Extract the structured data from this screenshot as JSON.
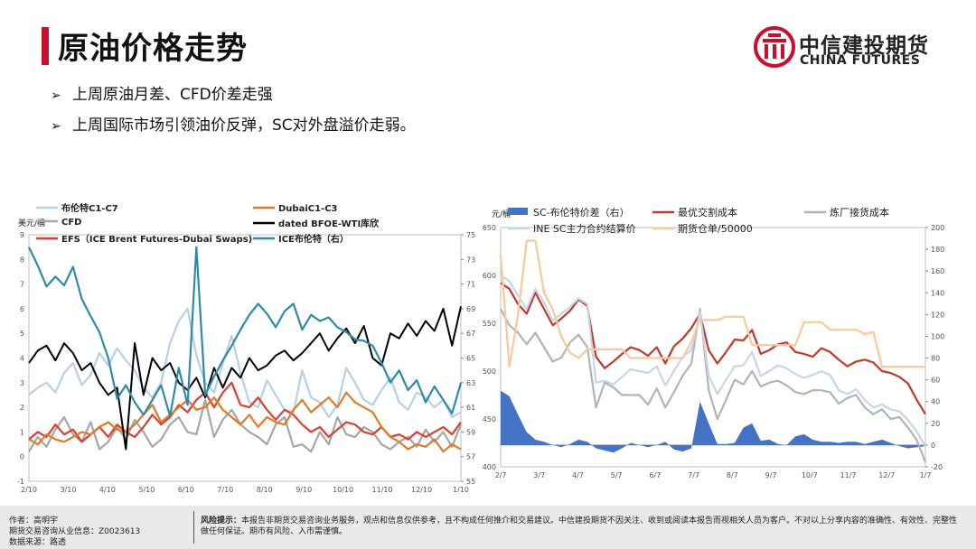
{
  "page_title": "原油价格走势",
  "logo": {
    "cn": "中信建投期货",
    "en": "CHINA FUTURES"
  },
  "bullets": [
    "上周原油月差、CFD价差走强",
    "上周国际市场引领油价反弹，SC对外盘溢价走弱。"
  ],
  "footer": {
    "author": "作者：高明宇",
    "license": "期货交易咨询从业信息：Z0023613",
    "source": "数据来源：路透",
    "risk_label": "风险提示：",
    "risk_text": "本报告非期货交易咨询业务服务，观点和信息仅供参考，且不构成任何推介和交易建议。中信建投期货不因关注、收到或阅读本报告而视相关人员为客户。不对以上分享内容的准确性、有效性、完整性做任何保证。期市有风险、入市需谨慎。"
  },
  "colors": {
    "accent": "#c8102e",
    "blue_light": "#b8cfe8",
    "gray": "#a6a6a6",
    "red": "#d94030",
    "orange": "#e07a2a",
    "black": "#000000",
    "teal": "#2e8ba8",
    "sc_bar": "#4472c4",
    "cost_red": "#c0392b",
    "cost_gray": "#b3b3b3",
    "ine_light": "#c6d6ea",
    "warehouse": "#f7c99b"
  },
  "chart_data": [
    {
      "type": "line",
      "ylabel_left": "美元/桶",
      "x_ticks": [
        "2/10",
        "3/10",
        "4/10",
        "5/10",
        "6/10",
        "7/10",
        "8/10",
        "9/10",
        "10/10",
        "11/10",
        "12/10",
        "1/10"
      ],
      "ylim_left": [
        -1,
        9
      ],
      "yticks_left": [
        -1,
        0,
        1,
        2,
        3,
        4,
        5,
        6,
        7,
        8,
        9
      ],
      "ylim_right": [
        55,
        75
      ],
      "yticks_right": [
        55,
        57,
        59,
        61,
        63,
        65,
        67,
        69,
        71,
        73,
        75
      ],
      "legend_position": "top",
      "series": [
        {
          "name": "布伦特C1-C7",
          "axis": "left",
          "color": "#b8cfe8",
          "values": [
            2.5,
            2.8,
            3.0,
            2.6,
            3.4,
            3.8,
            2.9,
            3.3,
            4.2,
            3.7,
            4.4,
            3.9,
            3.5,
            2.8,
            2.4,
            3.0,
            4.6,
            5.5,
            6.0,
            4.1,
            3.0,
            2.6,
            3.8,
            4.9,
            3.4,
            2.2,
            2.0,
            3.1,
            2.5,
            1.9,
            1.8,
            3.5,
            2.4,
            2.2,
            1.6,
            2.1,
            3.6,
            3.0,
            2.3,
            2.1,
            2.7,
            3.2,
            2.2,
            1.9,
            2.6,
            2.4,
            2.0,
            2.3,
            1.6,
            1.8
          ]
        },
        {
          "name": "CFD",
          "axis": "left",
          "color": "#a6a6a6",
          "values": [
            0.2,
            0.8,
            0.4,
            1.1,
            1.6,
            0.9,
            0.6,
            1.4,
            0.3,
            0.6,
            1.2,
            0.7,
            1.5,
            1.0,
            0.4,
            0.7,
            1.3,
            1.6,
            1.0,
            0.9,
            2.3,
            0.8,
            1.5,
            1.9,
            1.3,
            1.0,
            0.8,
            0.5,
            1.3,
            1.6,
            0.4,
            0.5,
            0.2,
            1.0,
            0.5,
            1.6,
            0.9,
            0.8,
            1.2,
            1.0,
            0.5,
            0.3,
            0.6,
            0.8,
            0.4,
            1.1,
            0.6,
            1.0,
            0.4,
            1.3
          ]
        },
        {
          "name": "EFS（ICE Brent Futures-Dubai Swaps)",
          "axis": "left",
          "color": "#d94030",
          "values": [
            0.7,
            1.0,
            0.8,
            1.3,
            0.9,
            1.1,
            0.6,
            0.9,
            1.2,
            0.8,
            1.3,
            1.0,
            0.8,
            1.2,
            1.7,
            1.3,
            1.6,
            2.1,
            1.8,
            2.3,
            2.6,
            2.0,
            2.6,
            3.0,
            2.1,
            2.0,
            2.4,
            1.9,
            1.5,
            1.9,
            1.7,
            1.3,
            1.0,
            1.2,
            0.8,
            1.1,
            1.4,
            1.3,
            1.0,
            0.9,
            1.2,
            0.8,
            0.9,
            0.7,
            1.0,
            0.8,
            1.0,
            1.2,
            0.9,
            1.4
          ]
        },
        {
          "name": "DubaiC1-C3",
          "axis": "left",
          "color": "#e07a2a",
          "values": [
            0.7,
            0.5,
            0.9,
            0.7,
            0.6,
            0.8,
            1.0,
            0.9,
            1.2,
            1.4,
            1.1,
            1.0,
            1.3,
            1.7,
            2.1,
            1.4,
            1.7,
            2.0,
            2.3,
            1.9,
            2.0,
            2.4,
            1.9,
            1.6,
            1.3,
            1.7,
            1.2,
            1.6,
            1.4,
            1.3,
            1.9,
            2.3,
            1.8,
            2.1,
            2.4,
            2.0,
            2.6,
            2.2,
            2.0,
            1.8,
            1.2,
            0.8,
            0.6,
            0.3,
            0.5,
            0.4,
            0.7,
            0.2,
            0.5,
            0.3
          ]
        },
        {
          "name": "dated BFOE-WTI库欣",
          "axis": "left",
          "color": "#000000",
          "values": [
            3.8,
            4.3,
            4.5,
            3.9,
            4.6,
            4.2,
            3.5,
            3.8,
            3.0,
            2.5,
            2.8,
            0.3,
            4.6,
            2.5,
            4.0,
            3.5,
            3.8,
            3.0,
            2.7,
            3.2,
            2.4,
            3.6,
            2.8,
            3.6,
            3.2,
            4.0,
            3.5,
            3.7,
            4.1,
            4.3,
            3.9,
            4.2,
            4.6,
            5.0,
            4.3,
            4.8,
            5.2,
            4.6,
            5.3,
            4.0,
            3.7,
            5.0,
            4.8,
            5.4,
            4.9,
            5.5,
            5.1,
            6.0,
            4.5,
            6.1
          ]
        },
        {
          "name": "ICE布伦特（右）",
          "axis": "right",
          "color": "#2e8ba8",
          "values": [
            74.0,
            72.5,
            70.8,
            71.6,
            70.9,
            72.4,
            69.8,
            68.4,
            67.1,
            65.0,
            61.7,
            62.8,
            61.4,
            60.4,
            61.6,
            62.8,
            60.3,
            64.2,
            61.2,
            74.0,
            62.0,
            63.5,
            64.8,
            66.0,
            67.3,
            68.5,
            69.4,
            68.6,
            67.5,
            68.8,
            69.4,
            67.3,
            68.5,
            68.0,
            68.3,
            67.5,
            67.1,
            66.5,
            66.4,
            66.0,
            64.6,
            63.0,
            64.0,
            62.4,
            63.2,
            61.4,
            62.7,
            61.6,
            60.5,
            63.0
          ]
        }
      ]
    },
    {
      "type": "line",
      "ylabel_left": "元/桶",
      "x_ticks": [
        "2/7",
        "3/7",
        "4/7",
        "5/7",
        "6/7",
        "7/7",
        "8/7",
        "9/7",
        "10/7",
        "11/7",
        "12/7",
        "1/7"
      ],
      "ylim_left": [
        400,
        650
      ],
      "yticks_left": [
        400,
        450,
        500,
        550,
        600,
        650
      ],
      "ylim_right": [
        -20,
        200
      ],
      "yticks_right": [
        -20,
        0,
        20,
        40,
        60,
        80,
        100,
        120,
        140,
        160,
        180,
        200
      ],
      "legend_position": "top",
      "series": [
        {
          "name": "SC-布伦特价差（右）",
          "axis": "right",
          "kind": "area",
          "color": "#4472c4",
          "values": [
            50,
            45,
            28,
            12,
            5,
            3,
            0,
            -2,
            1,
            5,
            3,
            -3,
            -5,
            -7,
            -3,
            2,
            0,
            -2,
            0,
            3,
            -4,
            -6,
            -3,
            40,
            20,
            1,
            1,
            2,
            16,
            20,
            4,
            5,
            1,
            0,
            8,
            10,
            5,
            3,
            3,
            2,
            3,
            3,
            1,
            3,
            5,
            2,
            -1,
            -3,
            -2,
            -1
          ]
        },
        {
          "name": "最优交割成本",
          "axis": "left",
          "color": "#c0392b",
          "values": [
            592,
            586,
            570,
            560,
            582,
            565,
            548,
            555,
            563,
            575,
            568,
            515,
            503,
            510,
            518,
            525,
            522,
            516,
            525,
            508,
            526,
            534,
            545,
            560,
            522,
            508,
            520,
            533,
            532,
            543,
            518,
            522,
            528,
            530,
            520,
            518,
            515,
            524,
            520,
            512,
            505,
            510,
            512,
            509,
            500,
            498,
            494,
            487,
            470,
            455
          ]
        },
        {
          "name": "炼厂接货成本",
          "axis": "left",
          "color": "#b3b3b3",
          "values": [
            565,
            548,
            540,
            528,
            540,
            525,
            510,
            514,
            530,
            538,
            525,
            462,
            488,
            483,
            475,
            475,
            475,
            465,
            482,
            462,
            478,
            495,
            508,
            565,
            480,
            450,
            470,
            491,
            486,
            500,
            484,
            488,
            490,
            485,
            478,
            476,
            480,
            480,
            478,
            466,
            472,
            475,
            462,
            455,
            460,
            450,
            452,
            441,
            428,
            405
          ]
        },
        {
          "name": "INE SC主力合约结算价",
          "axis": "left",
          "color": "#c6d6ea",
          "values": [
            600,
            594,
            579,
            565,
            586,
            572,
            553,
            560,
            567,
            576,
            570,
            488,
            490,
            486,
            494,
            502,
            500,
            498,
            505,
            485,
            500,
            515,
            522,
            562,
            495,
            476,
            491,
            505,
            506,
            520,
            495,
            500,
            506,
            503,
            497,
            493,
            496,
            500,
            496,
            480,
            476,
            481,
            470,
            462,
            465,
            460,
            458,
            449,
            437,
            421
          ]
        },
        {
          "name": "期货仓单/50000",
          "axis": "right",
          "color": "#f7c99b",
          "values": [
            175,
            72,
            120,
            188,
            188,
            140,
            125,
            100,
            85,
            80,
            88,
            88,
            88,
            88,
            88,
            80,
            80,
            80,
            80,
            80,
            80,
            80,
            95,
            115,
            115,
            115,
            118,
            118,
            118,
            92,
            92,
            92,
            92,
            92,
            92,
            113,
            113,
            113,
            106,
            106,
            106,
            106,
            102,
            104,
            72,
            72,
            72,
            72,
            72,
            72
          ]
        }
      ]
    }
  ]
}
